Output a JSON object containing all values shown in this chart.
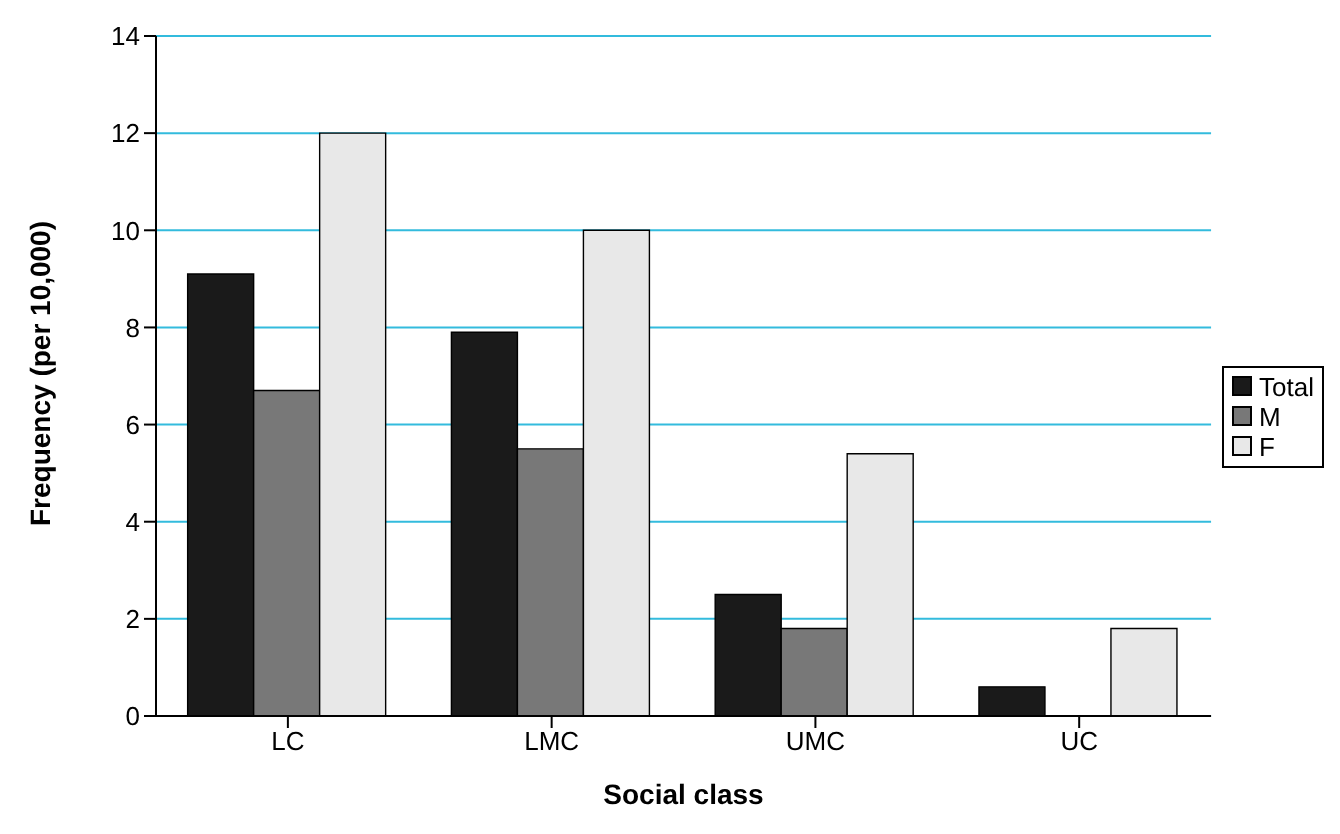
{
  "chart_data": {
    "type": "bar",
    "xlabel": "Social class",
    "ylabel": "Frequency (per 10,000)",
    "categories": [
      "LC",
      "LMC",
      "UMC",
      "UC"
    ],
    "series": [
      {
        "name": "Total",
        "color": "#1a1a1a",
        "values": [
          9.1,
          7.9,
          2.5,
          0.6
        ]
      },
      {
        "name": "M",
        "color": "#787878",
        "values": [
          6.7,
          5.5,
          1.8,
          null
        ]
      },
      {
        "name": "F",
        "color": "#e8e8e8",
        "values": [
          12,
          10,
          5.4,
          1.8
        ]
      }
    ],
    "ylim": [
      0,
      14
    ],
    "yticks": [
      0,
      2,
      4,
      6,
      8,
      10,
      12,
      14
    ],
    "grid": "y",
    "legend": "right"
  }
}
